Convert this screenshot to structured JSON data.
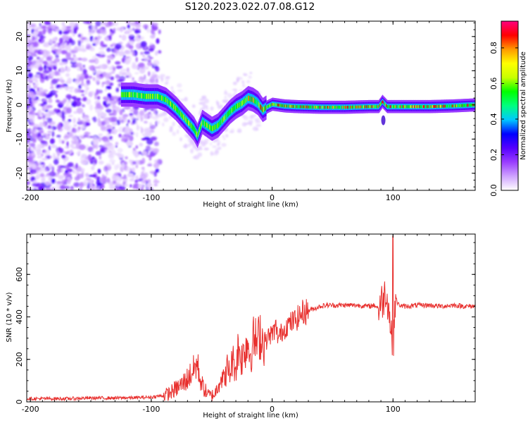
{
  "title": "S120.2023.022.07.08.G12",
  "chart_data": [
    {
      "type": "heatmap",
      "xlabel": "Height of straight line (km)",
      "ylabel": "Frequency (Hz)",
      "xlim": [
        -203,
        168
      ],
      "ylim": [
        -25,
        24.5
      ],
      "xticks": [
        -200,
        -100,
        0,
        100
      ],
      "yticks": [
        -20,
        -10,
        0,
        10,
        20
      ],
      "grid": false,
      "colorbar": {
        "label": "Normalized spectral amplitude",
        "range": [
          0,
          0.95
        ],
        "ticks": [
          0.0,
          0.2,
          0.4,
          0.6,
          0.8
        ],
        "colors": [
          "#ffffff",
          "#cfa3ff",
          "#9a3dff",
          "#5500ff",
          "#0000ff",
          "#00c8ff",
          "#00ff80",
          "#00ff00",
          "#c8ff00",
          "#ffff00",
          "#ff9900",
          "#ff0000",
          "#ff007f"
        ]
      },
      "ridge": {
        "x": [
          -125,
          -115,
          -105,
          -95,
          -88,
          -80,
          -75,
          -70,
          -65,
          -62,
          -58,
          -54,
          -50,
          -45,
          -40,
          -35,
          -30,
          -25,
          -20,
          -16,
          -12,
          -8,
          -4,
          0,
          10,
          20,
          40,
          60,
          80,
          88,
          91,
          95,
          110,
          130,
          150,
          168
        ],
        "y": [
          3,
          3,
          2.5,
          2.5,
          1.5,
          -1,
          -3,
          -5,
          -7,
          -9,
          -5,
          -6,
          -7,
          -6,
          -4,
          -2,
          -0.5,
          0.5,
          2,
          1.5,
          0.5,
          -1.5,
          -0.5,
          0.2,
          -0.3,
          -0.5,
          -0.7,
          -0.7,
          -0.5,
          -0.5,
          1,
          -0.5,
          -0.5,
          -0.5,
          -0.3,
          0
        ]
      }
    },
    {
      "type": "line",
      "xlabel": "Height of straight line (km)",
      "ylabel": "SNR (10 * v/v)",
      "xlim": [
        -203,
        168
      ],
      "ylim": [
        0,
        790
      ],
      "xticks": [
        -200,
        -100,
        0,
        100
      ],
      "yticks": [
        0,
        200,
        400,
        600
      ],
      "grid": false,
      "series": [
        {
          "color": "#e8302e",
          "x": [
            -203,
            -190,
            -170,
            -150,
            -130,
            -110,
            -100,
            -90,
            -85,
            -80,
            -75,
            -70,
            -65,
            -62,
            -60,
            -58,
            -55,
            -52,
            -50,
            -47,
            -45,
            -42,
            -40,
            -37,
            -35,
            -33,
            -30,
            -28,
            -25,
            -23,
            -20,
            -18,
            -15,
            -12,
            -10,
            -8,
            -5,
            -3,
            0,
            3,
            5,
            8,
            10,
            12,
            15,
            18,
            20,
            22,
            25,
            30,
            35,
            40,
            45,
            50,
            60,
            70,
            80,
            85,
            88,
            90,
            92,
            94,
            96,
            98,
            100,
            102,
            104,
            108,
            112,
            120,
            130,
            140,
            150,
            160,
            168
          ],
          "y": [
            15,
            15,
            15,
            18,
            18,
            20,
            22,
            30,
            40,
            60,
            80,
            110,
            150,
            180,
            120,
            80,
            50,
            30,
            30,
            40,
            80,
            120,
            100,
            160,
            130,
            200,
            160,
            260,
            200,
            250,
            280,
            220,
            300,
            270,
            330,
            290,
            280,
            310,
            320,
            350,
            300,
            330,
            340,
            360,
            370,
            380,
            390,
            400,
            420,
            430,
            440,
            450,
            455,
            455,
            455,
            455,
            450,
            455,
            440,
            470,
            480,
            530,
            460,
            360,
            250,
            500,
            460,
            450,
            450,
            455,
            455,
            450,
            455,
            450,
            450
          ]
        }
      ]
    }
  ]
}
